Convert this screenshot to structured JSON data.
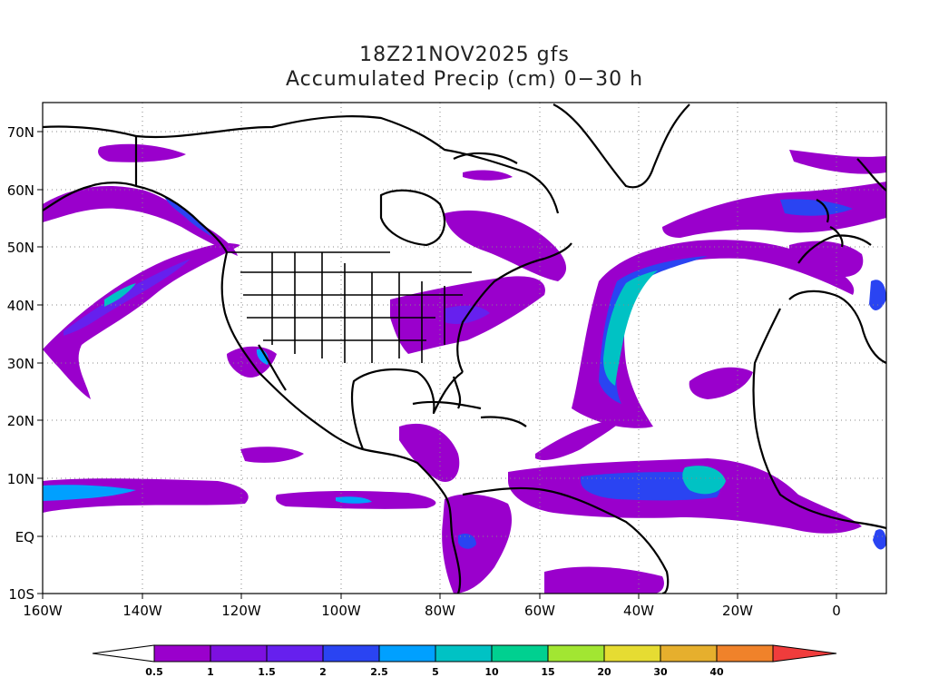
{
  "title": {
    "line1": "18Z21NOV2025 gfs",
    "line2": "Accumulated Precip (cm) 0−30 h"
  },
  "axes": {
    "lat_labels": [
      "70N",
      "60N",
      "50N",
      "40N",
      "30N",
      "20N",
      "10N",
      "EQ",
      "10S"
    ],
    "lon_labels": [
      "160W",
      "140W",
      "120W",
      "100W",
      "80W",
      "60W",
      "40W",
      "20W",
      "0"
    ]
  },
  "colorbar": {
    "labels": [
      "0.5",
      "1",
      "1.5",
      "2",
      "2.5",
      "5",
      "10",
      "15",
      "20",
      "30",
      "40"
    ],
    "colors": [
      "#9a00cc",
      "#7d10e0",
      "#6620ee",
      "#2a44f2",
      "#00a0ff",
      "#00c2c4",
      "#00d090",
      "#a2e632",
      "#e6dc32",
      "#e6af2d",
      "#f0822a"
    ],
    "over_color": "#f03c3c",
    "under_color": "#ffffff"
  },
  "map": {
    "grid": "dotted",
    "precip_colors": {
      "light": "#9a00cc",
      "medium": "#6620ee",
      "heavy": "#2a44f2",
      "very_heavy": "#00a0ff",
      "extreme": "#00c2c4",
      "max": "#00d090"
    }
  }
}
